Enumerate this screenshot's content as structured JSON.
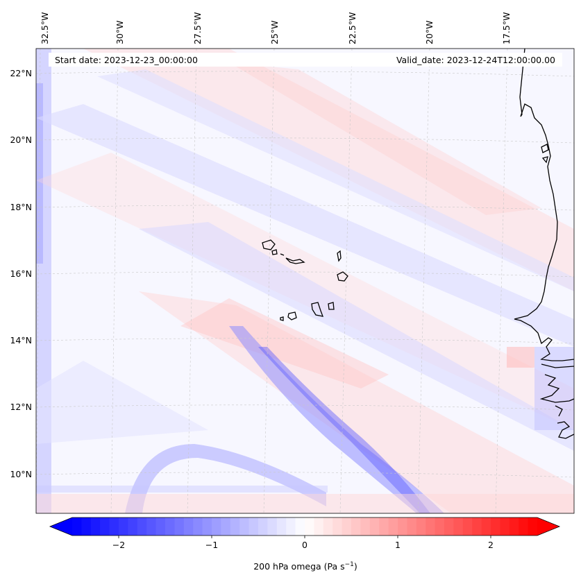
{
  "header": {
    "start_date": "Start date: 2023-12-23_00:00:00",
    "valid_date": "Valid_date: 2023-12-24T12:00:00.00"
  },
  "longitude_labels": [
    "32.5°W",
    "30°W",
    "27.5°W",
    "25°W",
    "22.5°W",
    "20°W",
    "17.5°W"
  ],
  "latitude_labels": [
    "22°N",
    "20°N",
    "18°N",
    "16°N",
    "14°N",
    "12°N",
    "10°N"
  ],
  "colorbar": {
    "label": "200 hPa omega (Pa s",
    "label_sup": "−1",
    "label_end": ")",
    "ticks": [
      "−2",
      "−1",
      "0",
      "1",
      "2"
    ],
    "tick_values": [
      -2,
      -1,
      0,
      1,
      2
    ],
    "vmin": -2.5,
    "vmax": 2.5,
    "colormap": "bwr",
    "extend": "both"
  },
  "chart_data": {
    "type": "heatmap",
    "variable": "200 hPa omega",
    "units": "Pa s^-1",
    "lon_range_deg": [
      -33,
      -16
    ],
    "lat_range_deg": [
      9,
      23
    ],
    "color_range": [
      -2.5,
      2.5
    ],
    "features": [
      "Cape Verde islands",
      "West African coastline (Senegal, The Gambia, Guinea-Bissau)"
    ]
  },
  "colors": {
    "neg": "#0000ff",
    "zero": "#ffffff",
    "pos": "#ff0000",
    "coast": "#000000",
    "grid": "#b8b8b8"
  }
}
